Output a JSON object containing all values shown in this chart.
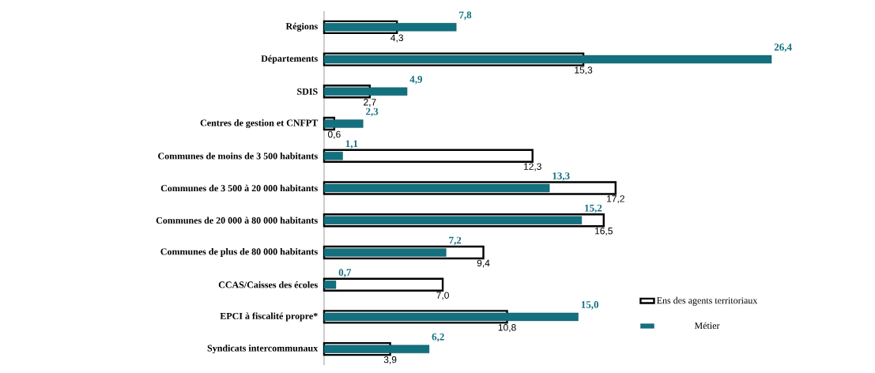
{
  "chart_data": {
    "type": "bar",
    "orientation": "horizontal",
    "categories": [
      "Régions",
      "Départements",
      "SDIS",
      "Centres de gestion et CNFPT",
      "Communes de moins de 3 500 habitants",
      "Communes de 3 500 à 20 000 habitants",
      "Communes de 20 000 à 80 000 habitants",
      "Communes de plus de 80 000 habitants",
      "CCAS/Caisses des écoles",
      "EPCI à fiscalité propre*",
      "Syndicats intercommunaux"
    ],
    "series": [
      {
        "name": "Ens des agents territoriaux",
        "color": "#000000",
        "values": [
          4.3,
          15.3,
          2.7,
          0.6,
          12.3,
          17.2,
          16.5,
          9.4,
          7.0,
          10.8,
          3.9
        ],
        "value_labels": [
          "4,3",
          "15,3",
          "2,7",
          "0,6",
          "12,3",
          "17,2",
          "16,5",
          "9,4",
          "7,0",
          "10,8",
          "3,9"
        ]
      },
      {
        "name": "Métier",
        "color": "#13707f",
        "values": [
          7.8,
          26.4,
          4.9,
          2.3,
          1.1,
          13.3,
          15.2,
          7.2,
          0.7,
          15.0,
          6.2
        ],
        "value_labels": [
          "7,8",
          "26,4",
          "4,9",
          "2,3",
          "1,1",
          "13,3",
          "15,2",
          "7,2",
          "0,7",
          "15,0",
          "6,2"
        ]
      }
    ],
    "legend": "bottom right"
  }
}
